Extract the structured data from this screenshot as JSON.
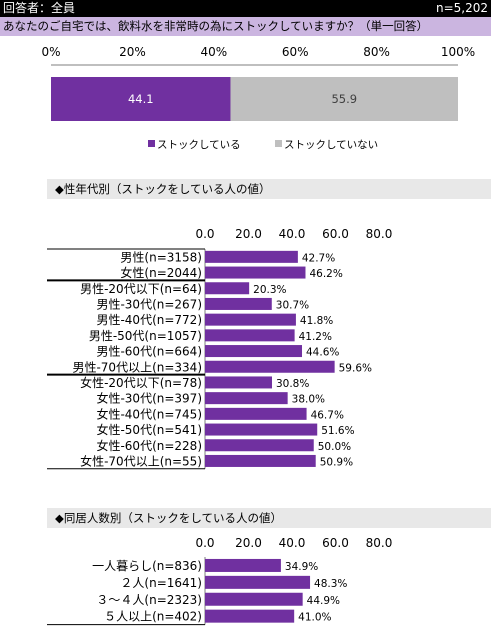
{
  "header": {
    "respondents_label": "回答者：全員",
    "n_label": "n=5,202",
    "question": "あなたのご自宅では、飲料水を非常時の為にストックしていますか？（単一回答）"
  },
  "colors": {
    "purple": "#7030a0",
    "gray": "#bfbfbf",
    "question_bg": "#cbb5e0",
    "section_bg": "#e8e8e8"
  },
  "chart_data": [
    {
      "type": "bar",
      "orientation": "horizontal-stacked-100",
      "x_ticks": [
        "0%",
        "20%",
        "40%",
        "60%",
        "80%",
        "100%"
      ],
      "xlim": [
        0,
        100
      ],
      "series": [
        {
          "name": "ストックしている",
          "values": [
            44.1
          ],
          "labels": [
            "44.1"
          ]
        },
        {
          "name": "ストックしていない",
          "values": [
            55.9
          ],
          "labels": [
            "55.9"
          ]
        }
      ]
    },
    {
      "type": "bar",
      "orientation": "horizontal",
      "section_title": "◆性年代別（ストックをしている人の値）",
      "x_ticks": [
        "0.0",
        "20.0",
        "40.0",
        "60.0",
        "80.0"
      ],
      "xlim": [
        0,
        80
      ],
      "categories": [
        "男性(n=3158)",
        "女性(n=2044)",
        "男性-20代以下(n=64)",
        "男性-30代(n=267)",
        "男性-40代(n=772)",
        "男性-50代(n=1057)",
        "男性-60代(n=664)",
        "男性-70代以上(n=334)",
        "女性-20代以下(n=78)",
        "女性-30代(n=397)",
        "女性-40代(n=745)",
        "女性-50代(n=541)",
        "女性-60代(n=228)",
        "女性-70代以上(n=55)"
      ],
      "values": [
        42.7,
        46.2,
        20.3,
        30.7,
        41.8,
        41.2,
        44.6,
        59.6,
        30.8,
        38.0,
        46.7,
        51.6,
        50.0,
        50.9
      ],
      "value_labels": [
        "42.7%",
        "46.2%",
        "20.3%",
        "30.7%",
        "41.8%",
        "41.2%",
        "44.6%",
        "59.6%",
        "30.8%",
        "38.0%",
        "46.7%",
        "51.6%",
        "50.0%",
        "50.9%"
      ]
    },
    {
      "type": "bar",
      "orientation": "horizontal",
      "section_title": "◆同居人数別（ストックをしている人の値）",
      "x_ticks": [
        "0.0",
        "20.0",
        "40.0",
        "60.0",
        "80.0"
      ],
      "xlim": [
        0,
        80
      ],
      "categories": [
        "一人暮らし(n=836)",
        "２人(n=1641)",
        "３～４人(n=2323)",
        "５人以上(n=402)"
      ],
      "values": [
        34.9,
        48.3,
        44.9,
        41.0
      ],
      "value_labels": [
        "34.9%",
        "48.3%",
        "44.9%",
        "41.0%"
      ]
    }
  ]
}
